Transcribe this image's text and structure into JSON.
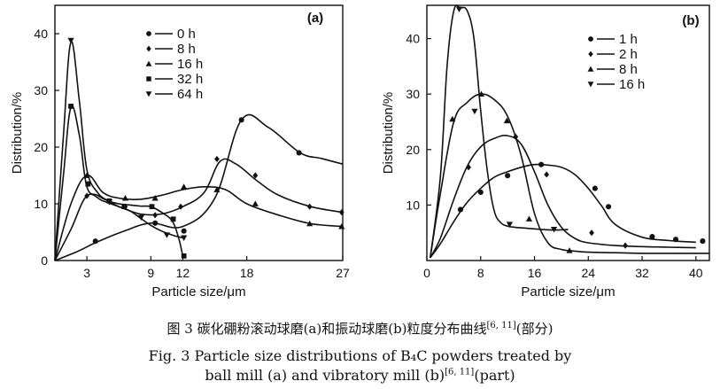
{
  "figure": {
    "caption_cn": {
      "main": "图 3   碳化硼粉滚动球磨(a)和振动球磨(b)粒度分布曲线",
      "ref": "[6, 11]",
      "tail": "(部分)"
    },
    "caption_en": {
      "line1": "Fig. 3   Particle size distributions of B₄C powders treated by",
      "line2_main": "ball mill (a) and vibratory mill (b)",
      "line2_ref": "[6, 11]",
      "line2_tail": "(part)"
    }
  },
  "chart_data": [
    {
      "type": "line",
      "panel_label": "(a)",
      "xlabel": "Particle size/μm",
      "ylabel": "Distribution/%",
      "xlim": [
        0,
        27
      ],
      "ylim": [
        0,
        45
      ],
      "xticks": [
        3,
        9,
        12,
        18,
        27
      ],
      "xtick_labels": [
        "3",
        "9",
        "12",
        "18",
        "27"
      ],
      "yticks": [
        0,
        10,
        20,
        30,
        40
      ],
      "ytick_labels": [
        "0",
        "10",
        "20",
        "30",
        "40"
      ],
      "legend_position": "top-right",
      "series": [
        {
          "name": "0 h",
          "marker": "circle",
          "x": [
            0,
            2,
            4,
            6.5,
            9,
            12,
            15,
            17.5,
            20,
            23,
            25,
            27
          ],
          "y": [
            0,
            1.5,
            3.3,
            5.2,
            6.6,
            6,
            11,
            24.8,
            23.5,
            19,
            18,
            17
          ],
          "marker_x": [
            3.8,
            9.4,
            12.1,
            17.5,
            22.9
          ],
          "marker_y": [
            3.4,
            6.6,
            5.2,
            24.8,
            19
          ]
        },
        {
          "name": "8 h",
          "marker": "diamond",
          "x": [
            0,
            1.5,
            3,
            4.5,
            6,
            8,
            10,
            12,
            14,
            15.5,
            17,
            19,
            21,
            24,
            27
          ],
          "y": [
            0,
            5.5,
            11.4,
            10.5,
            9.5,
            8.2,
            8.2,
            9.5,
            12,
            17.5,
            17,
            14,
            11.5,
            9.5,
            8.5
          ],
          "marker_x": [
            3,
            6.6,
            9.4,
            11.8,
            15.2,
            18.8,
            23.9,
            26.9
          ],
          "marker_y": [
            11.4,
            9.5,
            8,
            9.5,
            17.9,
            15,
            9.5,
            8.5
          ]
        },
        {
          "name": "16 h",
          "marker": "triangle-up",
          "x": [
            0,
            1.5,
            3,
            4.5,
            6,
            8,
            10,
            12,
            14,
            16,
            18,
            21,
            24,
            27
          ],
          "y": [
            0,
            10,
            15,
            12,
            11,
            10.8,
            11.5,
            12.5,
            13,
            12.5,
            10,
            8,
            6.5,
            6
          ],
          "marker_x": [
            3,
            6.6,
            9.4,
            12.1,
            15.2,
            18.8,
            23.9,
            26.9
          ],
          "marker_y": [
            15,
            11,
            11,
            13,
            12.5,
            10,
            6.5,
            6
          ]
        },
        {
          "name": "32 h",
          "marker": "square",
          "x": [
            0,
            0.8,
            1.5,
            2.3,
            3,
            4,
            5,
            6,
            7,
            8,
            9,
            10,
            11,
            11.6,
            12
          ],
          "y": [
            0,
            15,
            27,
            22,
            13,
            11.5,
            10.5,
            10,
            9.8,
            9.6,
            9.5,
            8.5,
            7,
            4,
            0.8
          ],
          "marker_x": [
            1.5,
            3.1,
            5.1,
            6.5,
            9.1,
            11.1,
            12.1
          ],
          "marker_y": [
            27.2,
            13.5,
            10.5,
            9.5,
            9.5,
            7.3,
            0.8
          ]
        },
        {
          "name": "64 h",
          "marker": "triangle-down",
          "x": [
            0,
            0.8,
            1.5,
            2.3,
            3,
            4,
            5,
            6,
            7,
            8,
            9,
            10,
            11,
            12
          ],
          "y": [
            0,
            22,
            38.5,
            28,
            16,
            12,
            10.5,
            9.5,
            8.8,
            7.5,
            6.2,
            5.2,
            4.5,
            4
          ],
          "marker_x": [
            1.5,
            3.1,
            5.1,
            8.1,
            10.5,
            12.1
          ],
          "marker_y": [
            38.8,
            13.5,
            10.3,
            7.6,
            4.5,
            4
          ]
        }
      ]
    },
    {
      "type": "line",
      "panel_label": "(b)",
      "xlabel": "Particle size/μm",
      "ylabel": "Distribution/%",
      "xlim": [
        0,
        42
      ],
      "ylim": [
        0,
        46
      ],
      "xticks": [
        0,
        8,
        16,
        24,
        32,
        40
      ],
      "xtick_labels": [
        "0",
        "8",
        "16",
        "24",
        "32",
        "40"
      ],
      "yticks": [
        10,
        20,
        30,
        40
      ],
      "ytick_labels": [
        "10",
        "20",
        "30",
        "40"
      ],
      "legend_position": "top-right",
      "series": [
        {
          "name": "1 h",
          "marker": "circle",
          "x": [
            0.5,
            2,
            4,
            6,
            8,
            10,
            12,
            14,
            16,
            18,
            20,
            22,
            24,
            26,
            28,
            32,
            36,
            40
          ],
          "y": [
            0.5,
            3,
            7,
            10.5,
            13,
            15,
            16,
            16.8,
            17.3,
            17.2,
            16.8,
            15.5,
            13,
            9.8,
            6.5,
            4.2,
            3.6,
            3.3
          ],
          "marker_x": [
            5,
            8,
            12,
            17,
            25,
            27,
            33.5,
            37,
            41
          ],
          "marker_y": [
            9.2,
            12.3,
            15.3,
            17.3,
            13,
            9.7,
            4.3,
            3.8,
            3.5
          ]
        },
        {
          "name": "2 h",
          "marker": "diamond",
          "x": [
            0.5,
            2,
            4,
            6,
            8,
            10,
            12,
            14,
            16,
            18,
            20,
            22,
            24,
            28,
            32,
            36,
            40
          ],
          "y": [
            0.5,
            4,
            11,
            17,
            20.5,
            22,
            22.5,
            21,
            16,
            10,
            6,
            4,
            3.2,
            2.7,
            2.5,
            2.4,
            2.3
          ],
          "marker_x": [
            6.2,
            13.2,
            17.8,
            24.5,
            29.5
          ],
          "marker_y": [
            16.8,
            22.3,
            15.5,
            5,
            2.7
          ]
        },
        {
          "name": "8 h",
          "marker": "triangle-up",
          "x": [
            0.5,
            2,
            4,
            6,
            8,
            10,
            12,
            14,
            16,
            18,
            20,
            22,
            24,
            28,
            32,
            36,
            40,
            42
          ],
          "y": [
            0.5,
            12,
            25,
            28.5,
            30,
            29,
            26,
            19,
            8.5,
            3.2,
            2,
            1.7,
            1.5,
            1.4,
            1.3,
            1.3,
            1.3,
            1.3
          ],
          "marker_x": [
            3.8,
            8.1,
            11.9,
            15.2,
            21.2
          ],
          "marker_y": [
            25.5,
            30,
            25.2,
            7.5,
            1.8
          ]
        },
        {
          "name": "16 h",
          "marker": "triangle-down",
          "x": [
            0.5,
            2,
            3,
            4,
            5,
            6,
            7,
            8,
            9,
            10,
            11,
            12,
            13,
            15,
            17,
            19,
            21
          ],
          "y": [
            0.5,
            15,
            35,
            45,
            45.5,
            45,
            40,
            27,
            16,
            9,
            6.8,
            6.2,
            6,
            5.8,
            5.6,
            5.5,
            5.6
          ],
          "marker_x": [
            4.8,
            7.1,
            12.3,
            18.9
          ],
          "marker_y": [
            45.3,
            26.9,
            6.5,
            5.6
          ]
        }
      ]
    }
  ]
}
